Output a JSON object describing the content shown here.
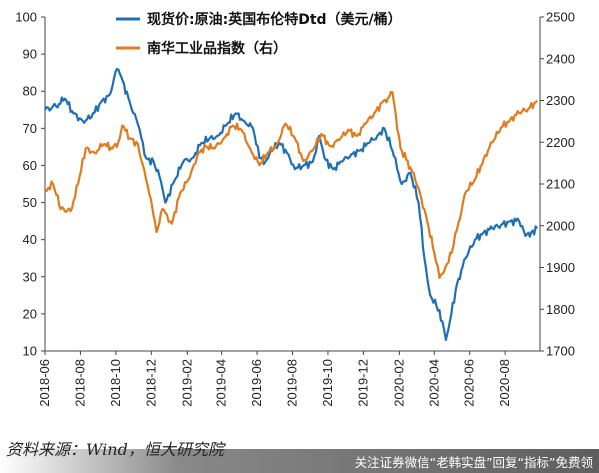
{
  "chart_data": {
    "type": "line",
    "title": "",
    "xlabel": "",
    "ylabel": "",
    "x_ticks": [
      "2018-06",
      "2018-08",
      "2018-10",
      "2018-12",
      "2019-02",
      "2019-04",
      "2019-06",
      "2019-08",
      "2019-10",
      "2019-12",
      "2020-02",
      "2020-04",
      "2020-06",
      "2020-08"
    ],
    "y_left": {
      "min": 10,
      "max": 100,
      "ticks": [
        "10",
        "20",
        "30",
        "40",
        "50",
        "60",
        "70",
        "80",
        "90",
        "100"
      ]
    },
    "y_right": {
      "min": 1700,
      "max": 2500,
      "ticks": [
        "1700",
        "1800",
        "1900",
        "2000",
        "2100",
        "2200",
        "2300",
        "2400",
        "2500"
      ]
    },
    "legend_position": "top-right",
    "grid": false,
    "series": [
      {
        "name": "现货价:原油:英国布伦特Dtd（美元/桶）",
        "axis": "left",
        "color": "#1f6fb4",
        "points": [
          [
            "2018-06-01",
            75
          ],
          [
            "2018-06-20",
            76
          ],
          [
            "2018-07-05",
            78
          ],
          [
            "2018-07-20",
            74
          ],
          [
            "2018-08-05",
            72
          ],
          [
            "2018-08-20",
            73
          ],
          [
            "2018-09-05",
            77
          ],
          [
            "2018-09-20",
            79
          ],
          [
            "2018-10-03",
            86
          ],
          [
            "2018-10-10",
            84
          ],
          [
            "2018-10-25",
            77
          ],
          [
            "2018-11-08",
            71
          ],
          [
            "2018-11-22",
            62
          ],
          [
            "2018-12-05",
            61
          ],
          [
            "2018-12-15",
            57
          ],
          [
            "2018-12-25",
            50
          ],
          [
            "2019-01-10",
            56
          ],
          [
            "2019-01-25",
            61
          ],
          [
            "2019-02-10",
            62
          ],
          [
            "2019-02-25",
            66
          ],
          [
            "2019-03-10",
            67
          ],
          [
            "2019-03-25",
            68
          ],
          [
            "2019-04-10",
            71
          ],
          [
            "2019-04-25",
            74
          ],
          [
            "2019-05-10",
            72
          ],
          [
            "2019-05-25",
            70
          ],
          [
            "2019-06-05",
            62
          ],
          [
            "2019-06-15",
            61
          ],
          [
            "2019-06-25",
            64
          ],
          [
            "2019-07-10",
            66
          ],
          [
            "2019-07-25",
            63
          ],
          [
            "2019-08-05",
            59
          ],
          [
            "2019-08-20",
            60
          ],
          [
            "2019-09-05",
            61
          ],
          [
            "2019-09-16",
            68
          ],
          [
            "2019-09-25",
            62
          ],
          [
            "2019-10-10",
            59
          ],
          [
            "2019-10-25",
            61
          ],
          [
            "2019-11-10",
            63
          ],
          [
            "2019-11-25",
            64
          ],
          [
            "2019-12-10",
            66
          ],
          [
            "2019-12-25",
            68
          ],
          [
            "2020-01-06",
            70
          ],
          [
            "2020-01-20",
            64
          ],
          [
            "2020-02-05",
            55
          ],
          [
            "2020-02-20",
            58
          ],
          [
            "2020-03-05",
            50
          ],
          [
            "2020-03-15",
            35
          ],
          [
            "2020-03-25",
            25
          ],
          [
            "2020-04-05",
            22
          ],
          [
            "2020-04-15",
            18
          ],
          [
            "2020-04-21",
            13
          ],
          [
            "2020-04-28",
            18
          ],
          [
            "2020-05-10",
            28
          ],
          [
            "2020-05-25",
            35
          ],
          [
            "2020-06-10",
            40
          ],
          [
            "2020-06-25",
            42
          ],
          [
            "2020-07-10",
            43
          ],
          [
            "2020-07-25",
            44
          ],
          [
            "2020-08-10",
            45
          ],
          [
            "2020-08-25",
            45
          ],
          [
            "2020-09-05",
            41
          ],
          [
            "2020-09-15",
            42
          ],
          [
            "2020-09-25",
            43
          ]
        ]
      },
      {
        "name": "南华工业品指数（右）",
        "axis": "right",
        "color": "#e07b1e",
        "points": [
          [
            "2018-06-01",
            2085
          ],
          [
            "2018-06-15",
            2100
          ],
          [
            "2018-06-28",
            2040
          ],
          [
            "2018-07-15",
            2035
          ],
          [
            "2018-07-28",
            2100
          ],
          [
            "2018-08-10",
            2185
          ],
          [
            "2018-08-25",
            2175
          ],
          [
            "2018-09-10",
            2195
          ],
          [
            "2018-09-25",
            2185
          ],
          [
            "2018-10-05",
            2200
          ],
          [
            "2018-10-12",
            2240
          ],
          [
            "2018-10-25",
            2210
          ],
          [
            "2018-11-08",
            2195
          ],
          [
            "2018-11-22",
            2110
          ],
          [
            "2018-12-03",
            2040
          ],
          [
            "2018-12-10",
            1985
          ],
          [
            "2018-12-20",
            2040
          ],
          [
            "2019-01-05",
            2005
          ],
          [
            "2019-01-20",
            2080
          ],
          [
            "2019-02-05",
            2115
          ],
          [
            "2019-02-20",
            2175
          ],
          [
            "2019-03-05",
            2190
          ],
          [
            "2019-03-20",
            2185
          ],
          [
            "2019-04-05",
            2210
          ],
          [
            "2019-04-20",
            2240
          ],
          [
            "2019-05-05",
            2230
          ],
          [
            "2019-05-20",
            2185
          ],
          [
            "2019-06-05",
            2145
          ],
          [
            "2019-06-20",
            2175
          ],
          [
            "2019-07-05",
            2195
          ],
          [
            "2019-07-20",
            2245
          ],
          [
            "2019-08-05",
            2210
          ],
          [
            "2019-08-20",
            2155
          ],
          [
            "2019-09-05",
            2180
          ],
          [
            "2019-09-20",
            2220
          ],
          [
            "2019-10-05",
            2190
          ],
          [
            "2019-10-20",
            2205
          ],
          [
            "2019-11-05",
            2230
          ],
          [
            "2019-11-20",
            2215
          ],
          [
            "2019-12-05",
            2245
          ],
          [
            "2019-12-20",
            2270
          ],
          [
            "2020-01-05",
            2300
          ],
          [
            "2020-01-12",
            2305
          ],
          [
            "2020-01-20",
            2320
          ],
          [
            "2020-02-03",
            2185
          ],
          [
            "2020-02-20",
            2140
          ],
          [
            "2020-03-05",
            2090
          ],
          [
            "2020-03-20",
            2010
          ],
          [
            "2020-04-01",
            1935
          ],
          [
            "2020-04-10",
            1875
          ],
          [
            "2020-04-20",
            1900
          ],
          [
            "2020-05-01",
            1935
          ],
          [
            "2020-05-10",
            1990
          ],
          [
            "2020-05-25",
            2080
          ],
          [
            "2020-06-10",
            2110
          ],
          [
            "2020-06-25",
            2160
          ],
          [
            "2020-07-10",
            2200
          ],
          [
            "2020-07-25",
            2235
          ],
          [
            "2020-08-10",
            2255
          ],
          [
            "2020-08-25",
            2270
          ],
          [
            "2020-09-10",
            2280
          ],
          [
            "2020-09-25",
            2300
          ]
        ]
      }
    ]
  },
  "source_text": "资料来源：Wind，恒大研究院",
  "watermark_text": "关注证券微信“老韩实盘”回复“指标”免费领"
}
